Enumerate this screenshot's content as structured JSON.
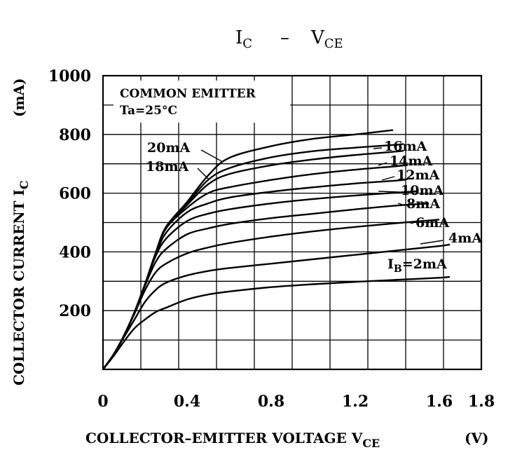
{
  "chart_data": {
    "type": "line",
    "title": {
      "main": "I",
      "main_sub": "C",
      "sep": "–",
      "second": "V",
      "second_sub": "CE"
    },
    "xlabel": {
      "main": "COLLECTOR–EMITTER VOLTAGE V",
      "sub": "CE",
      "unit": "(V)"
    },
    "ylabel": {
      "main": "COLLECTOR CURRENT I",
      "sub": "C",
      "unit": "(mA)"
    },
    "annotation": [
      "COMMON EMITTER",
      "Ta=25°C"
    ],
    "xlim": [
      0,
      1.8
    ],
    "ylim": [
      0,
      1000
    ],
    "xticks": [
      "0",
      "0.4",
      "0.8",
      "1.2",
      "1.6",
      "1.8"
    ],
    "yticks": [
      "200",
      "400",
      "600",
      "800",
      "1000"
    ],
    "grid": true,
    "series": [
      {
        "name": "2mA",
        "label": "I",
        "label_sub": "B",
        "label_rest": "=2mA",
        "x": [
          0,
          0.05,
          0.1,
          0.15,
          0.2,
          0.25,
          0.3,
          0.4,
          0.5,
          0.6,
          0.8,
          1.0,
          1.2,
          1.4,
          1.6,
          1.65
        ],
        "y": [
          0,
          45,
          95,
          140,
          170,
          195,
          210,
          238,
          255,
          265,
          280,
          290,
          298,
          305,
          312,
          315
        ]
      },
      {
        "name": "4mA",
        "label": "4mA",
        "x": [
          0,
          0.05,
          0.1,
          0.15,
          0.2,
          0.25,
          0.3,
          0.4,
          0.5,
          0.6,
          0.8,
          1.0,
          1.2,
          1.4,
          1.6,
          1.65
        ],
        "y": [
          0,
          50,
          110,
          170,
          230,
          270,
          295,
          320,
          335,
          345,
          360,
          375,
          390,
          405,
          420,
          425
        ]
      },
      {
        "name": "6mA",
        "label": "6mA",
        "x": [
          0,
          0.05,
          0.1,
          0.15,
          0.2,
          0.25,
          0.3,
          0.4,
          0.5,
          0.6,
          0.8,
          1.0,
          1.2,
          1.4,
          1.6
        ],
        "y": [
          0,
          50,
          115,
          190,
          270,
          330,
          360,
          395,
          415,
          430,
          452,
          470,
          485,
          498,
          510
        ]
      },
      {
        "name": "8mA",
        "label": "8mA",
        "x": [
          0,
          0.05,
          0.1,
          0.15,
          0.2,
          0.25,
          0.3,
          0.4,
          0.5,
          0.6,
          0.8,
          1.0,
          1.2,
          1.4,
          1.55
        ],
        "y": [
          0,
          50,
          115,
          195,
          285,
          365,
          410,
          460,
          480,
          495,
          515,
          530,
          545,
          558,
          565
        ]
      },
      {
        "name": "10mA",
        "label": "10mA",
        "x": [
          0,
          0.05,
          0.1,
          0.15,
          0.2,
          0.25,
          0.3,
          0.4,
          0.5,
          0.6,
          0.8,
          1.0,
          1.2,
          1.4,
          1.5
        ],
        "y": [
          0,
          50,
          115,
          195,
          290,
          385,
          445,
          505,
          530,
          545,
          565,
          580,
          592,
          602,
          607
        ]
      },
      {
        "name": "12mA",
        "label": "12mA",
        "x": [
          0,
          0.05,
          0.1,
          0.15,
          0.2,
          0.25,
          0.3,
          0.4,
          0.5,
          0.6,
          0.8,
          1.0,
          1.2,
          1.4,
          1.45
        ],
        "y": [
          0,
          50,
          115,
          195,
          290,
          390,
          465,
          535,
          565,
          585,
          605,
          620,
          633,
          643,
          648
        ]
      },
      {
        "name": "14mA",
        "label": "14mA",
        "x": [
          0,
          0.05,
          0.1,
          0.15,
          0.2,
          0.25,
          0.3,
          0.4,
          0.5,
          0.6,
          0.8,
          1.0,
          1.2,
          1.4,
          1.45
        ],
        "y": [
          0,
          50,
          115,
          195,
          290,
          395,
          480,
          550,
          600,
          620,
          645,
          665,
          680,
          692,
          696
        ]
      },
      {
        "name": "16mA",
        "label": "16mA",
        "x": [
          0,
          0.05,
          0.1,
          0.15,
          0.2,
          0.25,
          0.3,
          0.4,
          0.5,
          0.6,
          0.8,
          1.0,
          1.2,
          1.4,
          1.43
        ],
        "y": [
          0,
          50,
          115,
          195,
          290,
          395,
          485,
          560,
          630,
          665,
          695,
          715,
          730,
          742,
          745
        ]
      },
      {
        "name": "18mA",
        "label": "18mA",
        "x": [
          0,
          0.05,
          0.1,
          0.15,
          0.2,
          0.25,
          0.3,
          0.4,
          0.5,
          0.6,
          0.8,
          1.0,
          1.2,
          1.4,
          1.43
        ],
        "y": [
          0,
          50,
          115,
          195,
          290,
          395,
          485,
          565,
          645,
          685,
          722,
          743,
          755,
          765,
          768
        ]
      },
      {
        "name": "20mA",
        "label": "20mA",
        "x": [
          0,
          0.05,
          0.1,
          0.15,
          0.2,
          0.25,
          0.3,
          0.4,
          0.5,
          0.6,
          0.8,
          1.0,
          1.2,
          1.38
        ],
        "y": [
          0,
          50,
          115,
          195,
          290,
          395,
          485,
          570,
          660,
          720,
          760,
          785,
          800,
          815
        ]
      }
    ]
  }
}
